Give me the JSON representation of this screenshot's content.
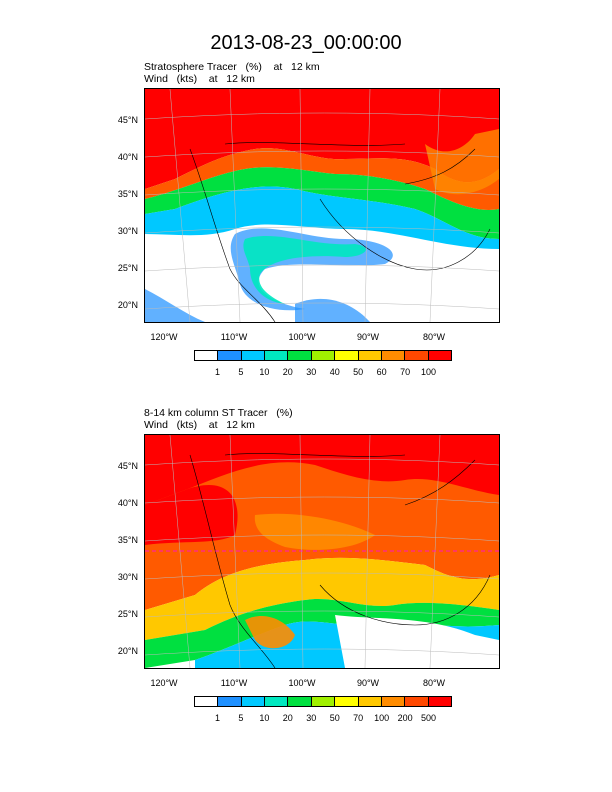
{
  "title": "2013-08-23_00:00:00",
  "panels": [
    {
      "subtitle_line1": "Stratosphere Tracer   (%)    at   12 km",
      "subtitle_line2": "Wind   (kts)    at   12 km",
      "lat_labels": [
        "45°N",
        "40°N",
        "35°N",
        "30°N",
        "25°N",
        "20°N"
      ],
      "lon_labels": [
        "120°W",
        "110°W",
        "100°W",
        "90°W",
        "80°W"
      ],
      "colorbar_labels": [
        "1",
        "5",
        "10",
        "20",
        "30",
        "40",
        "50",
        "60",
        "70",
        "100"
      ]
    },
    {
      "subtitle_line1": "8-14 km column ST Tracer   (%)",
      "subtitle_line2": "Wind   (kts)    at   12 km",
      "lat_labels": [
        "45°N",
        "40°N",
        "35°N",
        "30°N",
        "25°N",
        "20°N"
      ],
      "lon_labels": [
        "120°W",
        "110°W",
        "100°W",
        "90°W",
        "80°W"
      ],
      "colorbar_labels": [
        "1",
        "5",
        "10",
        "20",
        "30",
        "50",
        "70",
        "100",
        "200",
        "500"
      ]
    }
  ],
  "colorbar_colors": [
    "#ffffff",
    "#1e90ff",
    "#00c8ff",
    "#00e8c0",
    "#00e040",
    "#a0f000",
    "#ffff00",
    "#ffc800",
    "#ff8c00",
    "#ff4800",
    "#ff0000"
  ]
}
